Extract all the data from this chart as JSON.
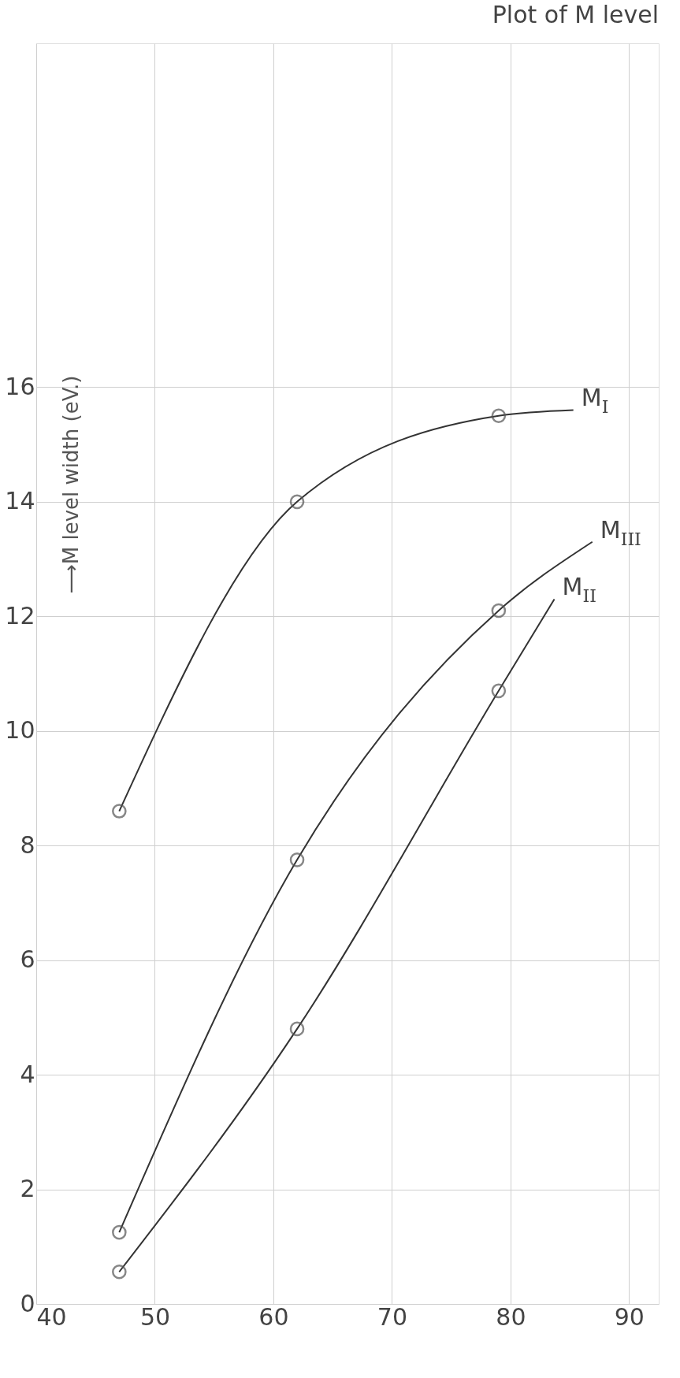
{
  "chart_data": {
    "type": "line",
    "title": "Plot of M level",
    "ylabel": "⟶M level width (eV.)",
    "xlim": [
      40,
      92.5
    ],
    "xticks": [
      40,
      50,
      60,
      70,
      80,
      90
    ],
    "ylim": [
      0,
      22
    ],
    "yticks": [
      0,
      2,
      4,
      6,
      8,
      10,
      12,
      14,
      16
    ],
    "grid": true,
    "line_style": "solid",
    "series": [
      {
        "name": "M$_{I}$",
        "color": "#333333",
        "x": [
          47,
          62,
          79,
          85.3
        ],
        "values": [
          8.6,
          14.0,
          15.5,
          15.6
        ]
      },
      {
        "name": "M$_{III}$",
        "color": "#333333",
        "x": [
          47,
          62,
          79,
          86.9
        ],
        "values": [
          1.25,
          7.75,
          12.1,
          13.3
        ]
      },
      {
        "name": "M$_{II}$",
        "color": "#333333",
        "x": [
          47,
          62,
          79,
          83.7
        ],
        "values": [
          0.56,
          4.8,
          10.7,
          12.3
        ]
      },
      {
        "type": "scatter",
        "marker": "circle",
        "color": "#555555",
        "x": [
          47,
          62,
          79
        ],
        "values": [
          8.6,
          14.0,
          15.5
        ]
      },
      {
        "type": "scatter",
        "marker": "circle",
        "color": "#555555",
        "x": [
          47,
          62,
          79
        ],
        "values": [
          1.25,
          7.75,
          12.1
        ]
      },
      {
        "type": "scatter",
        "marker": "circle",
        "color": "#555555",
        "x": [
          47,
          62,
          79
        ],
        "values": [
          0.56,
          4.8,
          10.7
        ]
      }
    ]
  }
}
